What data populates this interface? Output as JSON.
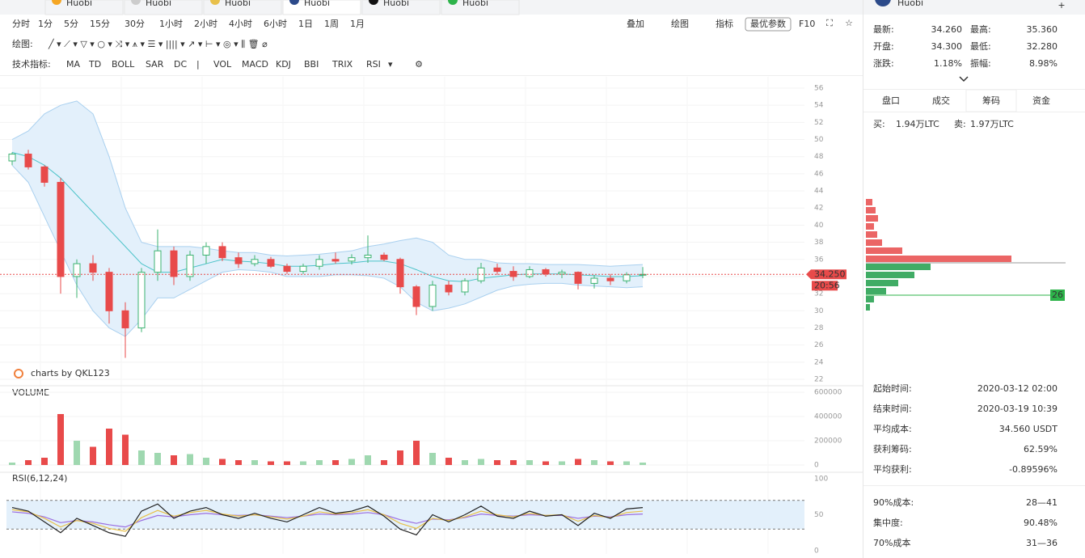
{
  "tabs": [
    "Huobi",
    "Huobi",
    "Huobi",
    "Huobi",
    "Huobi",
    "Huobi"
  ],
  "side_header": "Huobi",
  "toolbar": {
    "intervals": [
      "分时",
      "1分",
      "5分",
      "15分",
      "30分",
      "1小时",
      "2小时",
      "4小时",
      "6小时",
      "1日",
      "1周",
      "1月"
    ],
    "active_interval": "1小时",
    "tools": [
      "叠加",
      "绘图",
      "指标"
    ],
    "best_params": "最优参数",
    "f10": "F10",
    "draw_label": "绘图:",
    "indicator_label": "技术指标:",
    "indicators": [
      "MA",
      "TD",
      "BOLL",
      "SAR",
      "DC",
      "|",
      "VOL",
      "MACD",
      "KDJ",
      "BBI",
      "TRIX",
      "RSI"
    ],
    "active_indicators": [
      "BOLL",
      "VOL",
      "RSI"
    ]
  },
  "chart_data": [
    {
      "type": "candlestick",
      "watermark": "charts by QKL123",
      "up_color": "#3cb371",
      "down_color": "#e84a4a",
      "open": [
        47.5,
        48.3,
        46.8,
        45,
        34,
        35.5,
        34.5,
        30,
        28,
        34.5,
        37,
        34,
        36.5,
        37.5,
        36.2,
        35.5,
        36,
        35.2,
        34.6,
        35.2,
        36,
        35.8,
        36.2,
        36.5,
        36,
        32.8,
        30.5,
        33,
        32.2,
        33.5,
        35,
        34.6,
        34,
        34.8,
        34.3,
        34.5,
        33.2,
        33.8,
        33.5,
        34.2
      ],
      "high": [
        48.5,
        48.8,
        47,
        45.5,
        36,
        36.5,
        35,
        31,
        35,
        39.5,
        37.5,
        37,
        38,
        38,
        36.8,
        36.5,
        36.3,
        35.5,
        35.5,
        36.5,
        36.8,
        36.6,
        38.8,
        36.8,
        36.2,
        33,
        33.5,
        33.5,
        33.8,
        35.6,
        35.5,
        35.2,
        35.2,
        35,
        34.8,
        34.6,
        34.2,
        34.3,
        34.5,
        35.1
      ],
      "low": [
        47,
        46.5,
        44.5,
        32,
        31.5,
        33.5,
        28.5,
        24.5,
        27.5,
        33.5,
        33,
        33.5,
        35.5,
        35.8,
        35,
        35.2,
        35,
        34.3,
        34.3,
        34.8,
        35.5,
        35.4,
        35.6,
        35.8,
        32,
        29.5,
        30,
        31.8,
        31.8,
        33.2,
        34.2,
        33.5,
        33.8,
        34,
        33.8,
        32.5,
        32.6,
        33,
        33.2,
        33.8
      ],
      "close": [
        48.3,
        46.8,
        45,
        34,
        35.5,
        34.5,
        30,
        28,
        34.5,
        37,
        34,
        36.5,
        37.5,
        36.2,
        35.5,
        36,
        35.2,
        34.6,
        35.2,
        36,
        35.8,
        36.2,
        36.5,
        36,
        32.8,
        30.5,
        33,
        32.2,
        33.5,
        35,
        34.6,
        34,
        34.8,
        34.3,
        34.5,
        33.2,
        33.8,
        33.5,
        34.2,
        34.25
      ],
      "bands": {
        "upper": [
          50,
          51,
          53,
          54,
          54.5,
          53,
          48,
          42,
          38,
          37.5,
          37.5,
          37.5,
          37.3,
          37,
          36.8,
          36.8,
          36.5,
          36.4,
          36.5,
          36.6,
          36.8,
          37,
          37.5,
          37.8,
          38.2,
          38.5,
          38,
          36.5,
          36,
          36,
          35.6,
          35.5,
          35.5,
          35.4,
          35.4,
          35.4,
          35.3,
          35.2,
          35.3,
          35.4
        ],
        "middle": [
          48.5,
          48,
          47,
          45.5,
          43.5,
          41.5,
          39.5,
          37.5,
          35.5,
          34.5,
          34.5,
          35,
          35.5,
          36,
          35.8,
          35.7,
          35.5,
          35.2,
          35.2,
          35.3,
          35.5,
          35.6,
          35.8,
          35.8,
          35.5,
          34.8,
          34,
          33.5,
          33.4,
          33.8,
          34,
          34.2,
          34.3,
          34.3,
          34.3,
          34.2,
          34.1,
          34,
          34,
          34.1
        ],
        "lower": [
          47,
          45,
          41,
          37,
          33,
          30,
          28,
          27,
          29,
          31.5,
          31.5,
          32.5,
          33.5,
          34.5,
          34.8,
          34.7,
          34.5,
          34,
          34,
          34,
          34.2,
          34.2,
          34.1,
          33.8,
          32.8,
          31,
          30,
          30.3,
          30.8,
          31.6,
          32.4,
          32.9,
          33.1,
          33.2,
          33.2,
          33,
          32.9,
          32.8,
          32.7,
          32.8
        ]
      },
      "last_price": {
        "value": 34.25,
        "label": "34.250"
      },
      "countdown": "20:56",
      "ylim": [
        22,
        56
      ],
      "yticks": [
        22,
        24,
        26,
        28,
        30,
        32,
        34,
        36,
        38,
        40,
        42,
        44,
        46,
        48,
        50,
        52,
        54,
        56
      ]
    },
    {
      "type": "bar",
      "title": "VOLUME",
      "values": [
        20000,
        40000,
        60000,
        420000,
        200000,
        150000,
        300000,
        250000,
        120000,
        100000,
        80000,
        90000,
        60000,
        50000,
        40000,
        40000,
        30000,
        30000,
        30000,
        40000,
        40000,
        50000,
        80000,
        40000,
        120000,
        200000,
        100000,
        60000,
        40000,
        50000,
        40000,
        40000,
        40000,
        30000,
        30000,
        50000,
        40000,
        30000,
        30000,
        20000
      ],
      "ylim": [
        0,
        600000
      ],
      "yticks": [
        0,
        200000,
        400000,
        600000
      ]
    },
    {
      "type": "line",
      "title": "RSI(6,12,24)",
      "series": [
        {
          "name": "RSI6",
          "color": "#222222",
          "values": [
            60,
            55,
            40,
            25,
            45,
            35,
            25,
            20,
            55,
            65,
            45,
            55,
            60,
            50,
            45,
            52,
            45,
            40,
            50,
            60,
            52,
            55,
            62,
            48,
            30,
            22,
            50,
            40,
            50,
            62,
            48,
            45,
            55,
            48,
            50,
            35,
            52,
            45,
            58,
            60
          ]
        },
        {
          "name": "RSI12",
          "color": "#e8c04a",
          "values": [
            57,
            54,
            45,
            33,
            42,
            38,
            31,
            27,
            46,
            56,
            48,
            53,
            56,
            51,
            48,
            50,
            47,
            44,
            48,
            54,
            51,
            53,
            57,
            50,
            38,
            31,
            45,
            42,
            47,
            55,
            50,
            47,
            52,
            49,
            50,
            41,
            49,
            46,
            53,
            55
          ]
        },
        {
          "name": "RSI24",
          "color": "#9b6fe0",
          "values": [
            54,
            52,
            47,
            39,
            42,
            40,
            36,
            33,
            42,
            49,
            47,
            50,
            52,
            50,
            49,
            50,
            48,
            46,
            48,
            51,
            50,
            51,
            53,
            50,
            43,
            38,
            44,
            43,
            46,
            51,
            49,
            48,
            50,
            49,
            49,
            45,
            48,
            47,
            50,
            51
          ]
        }
      ],
      "band": [
        30,
        70
      ],
      "ylim": [
        0,
        100
      ],
      "yticks": [
        0,
        50,
        100
      ]
    },
    {
      "type": "hbar",
      "prices": [
        43,
        42,
        41,
        40,
        39,
        38,
        37,
        36,
        35,
        34,
        33,
        32,
        31,
        30
      ],
      "values": [
        8,
        12,
        15,
        10,
        14,
        20,
        45,
        180,
        80,
        60,
        40,
        25,
        10,
        5
      ],
      "current": 35.5,
      "marker": {
        "value": 31.5,
        "label": "26"
      },
      "ylim": [
        29.5,
        43.5
      ]
    }
  ],
  "quote": [
    {
      "label": "最新:",
      "value": "34.260",
      "label2": "最高:",
      "value2": "35.360"
    },
    {
      "label": "开盘:",
      "value": "34.300",
      "label2": "最低:",
      "value2": "32.280"
    },
    {
      "label": "涨跌:",
      "value": "1.18%",
      "label2": "振幅:",
      "value2": "8.98%"
    }
  ],
  "side_tabs": [
    "盘口",
    "成交",
    "筹码",
    "资金"
  ],
  "active_side_tab": "筹码",
  "buy_sell": {
    "buy_label": "买:",
    "buy": "1.94万LTC",
    "sell_label": "卖:",
    "sell": "1.97万LTC"
  },
  "stats": [
    {
      "label": "起始时间:",
      "value": "2020-03-12 02:00"
    },
    {
      "label": "结束时间:",
      "value": "2020-03-19 10:39"
    },
    {
      "label": "平均成本:",
      "value": "34.560 USDT"
    },
    {
      "label": "获利筹码:",
      "value": "62.59%"
    },
    {
      "label": "平均获利:",
      "value": "-0.89596%"
    }
  ],
  "stats2": [
    {
      "label": "90%成本:",
      "value": "28—41"
    },
    {
      "label": "集中度:",
      "value": "90.48%"
    },
    {
      "label": "70%成本",
      "value": "31—36"
    }
  ]
}
